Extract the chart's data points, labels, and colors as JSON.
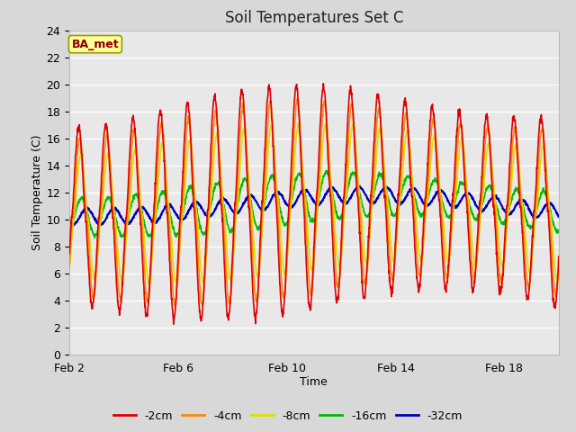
{
  "title": "Soil Temperatures Set C",
  "xlabel": "Time",
  "ylabel": "Soil Temperature (C)",
  "ylim": [
    0,
    24
  ],
  "yticks": [
    0,
    2,
    4,
    6,
    8,
    10,
    12,
    14,
    16,
    18,
    20,
    22,
    24
  ],
  "fig_bg_color": "#d8d8d8",
  "plot_bg_color": "#e8e8e8",
  "annotation_text": "BA_met",
  "annotation_bg": "#ffff99",
  "annotation_border": "#999900",
  "annotation_text_color": "#880000",
  "lines": {
    "-2cm": {
      "color": "#dd0000",
      "lw": 1.2,
      "zorder": 5
    },
    "-4cm": {
      "color": "#ff8800",
      "lw": 1.2,
      "zorder": 4
    },
    "-8cm": {
      "color": "#dddd00",
      "lw": 1.2,
      "zorder": 3
    },
    "-16cm": {
      "color": "#00bb00",
      "lw": 1.2,
      "zorder": 2
    },
    "-32cm": {
      "color": "#0000bb",
      "lw": 1.5,
      "zorder": 1
    }
  },
  "x_tick_labels": [
    "Feb 2",
    "Feb 6",
    "Feb 10",
    "Feb 14",
    "Feb 18"
  ],
  "x_tick_positions": [
    2,
    6,
    10,
    14,
    18
  ],
  "start_day": 2,
  "end_day": 20,
  "num_points": 1800
}
